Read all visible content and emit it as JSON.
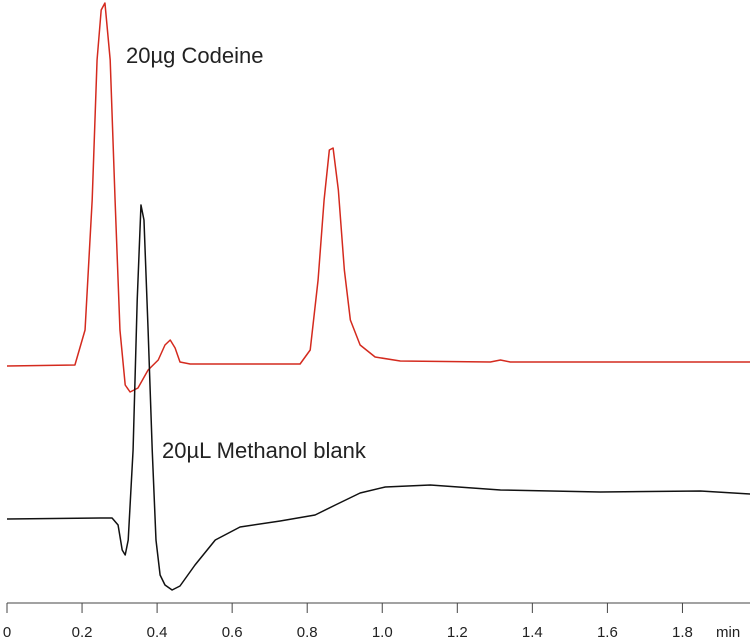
{
  "chart_data": {
    "type": "line",
    "x_label": "min",
    "xlim": [
      0,
      1.98
    ],
    "ylim": [
      0,
      603
    ],
    "xticks": [
      0,
      0.2,
      0.4,
      0.6,
      0.8,
      {
        "value": 1,
        "label": "1.0"
      },
      1.2,
      1.4,
      1.6,
      1.8
    ],
    "series": [
      {
        "name": "20µg Codeine",
        "color": "#d42a1e",
        "x": [
          0,
          0.181,
          0.208,
          0.227,
          0.24,
          0.251,
          0.261,
          0.275,
          0.288,
          0.301,
          0.315,
          0.328,
          0.349,
          0.376,
          0.403,
          0.421,
          0.435,
          0.448,
          0.461,
          0.488,
          0.781,
          0.808,
          0.829,
          0.845,
          0.859,
          0.869,
          0.883,
          0.899,
          0.915,
          0.941,
          0.981,
          1.048,
          1.288,
          1.315,
          1.341,
          1.981
        ],
        "values": [
          237,
          238,
          273,
          403,
          543,
          593,
          600,
          543,
          403,
          273,
          218,
          211,
          215,
          233,
          243,
          258,
          263,
          255,
          241,
          239,
          239,
          253,
          323,
          403,
          453,
          455,
          413,
          333,
          283,
          258,
          246,
          242,
          241,
          243,
          241,
          241
        ]
      },
      {
        "name": "20µL Methanol blank",
        "color": "#111111",
        "x": [
          0,
          0.248,
          0.28,
          0.296,
          0.307,
          0.315,
          0.323,
          0.336,
          0.347,
          0.357,
          0.365,
          0.376,
          0.387,
          0.397,
          0.408,
          0.421,
          0.44,
          0.461,
          0.501,
          0.555,
          0.621,
          0.728,
          0.821,
          0.875,
          0.941,
          1.008,
          1.128,
          1.315,
          1.581,
          1.848,
          1.981
        ],
        "values": [
          84,
          85,
          85,
          78,
          53,
          48,
          63,
          153,
          303,
          398,
          383,
          273,
          153,
          63,
          28,
          18,
          13,
          17,
          38,
          63,
          76,
          82,
          88,
          98,
          110,
          116,
          118,
          113,
          111,
          112,
          109
        ]
      }
    ]
  }
}
